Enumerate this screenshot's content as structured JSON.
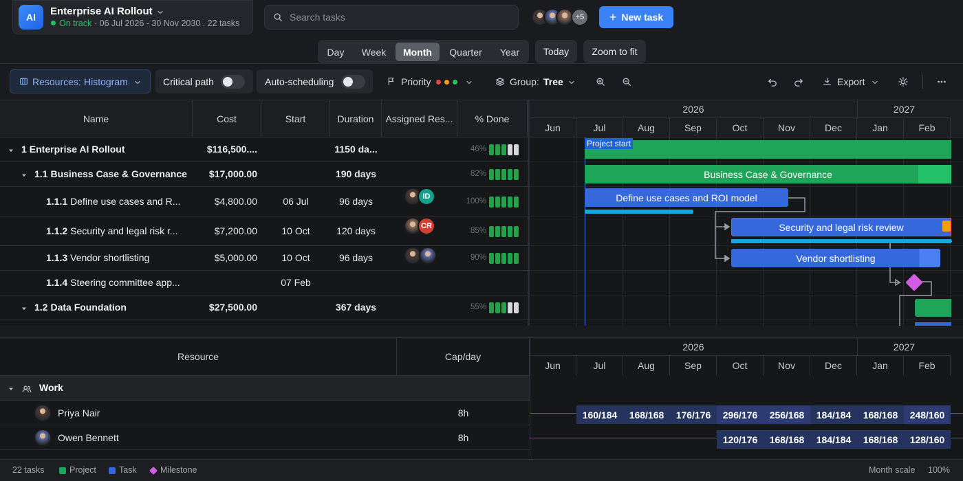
{
  "header": {
    "logo": "AI",
    "project_name": "Enterprise AI Rollout",
    "status": "On track",
    "date_range": "· 06 Jul 2026 - 30 Nov 2030 . 22 tasks",
    "search_placeholder": "Search tasks",
    "more_avatars": "+5",
    "new_task": "New task"
  },
  "views": {
    "tabs": [
      {
        "label": "Day"
      },
      {
        "label": "Week"
      },
      {
        "label": "Month",
        "active": true
      },
      {
        "label": "Quarter"
      },
      {
        "label": "Year"
      }
    ],
    "today": "Today",
    "zoom": "Zoom to fit"
  },
  "toolbar": {
    "resources_label": "Resources:",
    "resources_value": "Histogram",
    "critical_path": "Critical path",
    "auto_scheduling": "Auto-scheduling",
    "priority": "Priority",
    "group_label": "Group:",
    "group_value": "Tree",
    "export": "Export"
  },
  "grid": {
    "columns": [
      "Name",
      "Cost",
      "Start",
      "Duration",
      "Assigned Res...",
      "% Done"
    ],
    "rows": [
      {
        "id": "1",
        "name": "Enterprise AI Rollout",
        "level": 0,
        "cost": "$116,500....",
        "duration": "1150 da...",
        "done": {
          "value": 46,
          "label": "46%"
        }
      },
      {
        "id": "1.1",
        "name": "Business Case & Governance",
        "level": 1,
        "cost": "$17,000.00",
        "duration": "190 days",
        "done": {
          "value": 82,
          "label": "82%"
        }
      },
      {
        "id": "1.1.1",
        "name": "Define use cases and R...",
        "level": 2,
        "cost": "$4,800.00",
        "start": "06 Jul",
        "duration": "96 days",
        "assigned": [
          "ID"
        ],
        "done": {
          "value": 100,
          "label": "100%"
        }
      },
      {
        "id": "1.1.2",
        "name": "Security and legal risk r...",
        "level": 2,
        "cost": "$7,200.00",
        "start": "10 Oct",
        "duration": "120 days",
        "assigned": [
          "CR"
        ],
        "done": {
          "value": 85,
          "label": "85%"
        }
      },
      {
        "id": "1.1.3",
        "name": "Vendor shortlisting",
        "level": 2,
        "cost": "$5,000.00",
        "start": "10 Oct",
        "duration": "96 days",
        "done": {
          "value": 90,
          "label": "90%"
        }
      },
      {
        "id": "1.1.4",
        "name": "Steering committee app...",
        "level": 2,
        "start": "07 Feb"
      },
      {
        "id": "1.2",
        "name": "Data Foundation",
        "level": 1,
        "cost": "$27,500.00",
        "duration": "367 days",
        "done": {
          "value": 55,
          "label": "55%"
        }
      }
    ]
  },
  "gantt": {
    "years": [
      "2026",
      "2027"
    ],
    "months": [
      "Jun",
      "Jul",
      "Aug",
      "Sep",
      "Oct",
      "Nov",
      "Dec",
      "Jan",
      "Feb"
    ],
    "marker": "Project start",
    "bars": [
      "Business Case & Governance",
      "Define use cases and ROI model",
      "Security and legal risk review",
      "Vendor shortlisting"
    ]
  },
  "resources": {
    "columns": [
      "Resource",
      "Cap/day"
    ],
    "group": "Work",
    "rows": [
      {
        "name": "Priya Nair",
        "cap": "8h",
        "loads": [
          null,
          "160/184",
          "168/168",
          "176/176",
          "296/176",
          "256/168",
          "184/184",
          "168/168",
          "248/160"
        ]
      },
      {
        "name": "Owen Bennett",
        "cap": "8h",
        "loads": [
          null,
          null,
          null,
          null,
          "120/176",
          "168/168",
          "184/184",
          "168/168",
          "128/160"
        ]
      }
    ]
  },
  "footer": {
    "count": "22 tasks",
    "legend": [
      "Project",
      "Task",
      "Milestone"
    ],
    "scale": "Month scale",
    "zoom": "100%"
  }
}
